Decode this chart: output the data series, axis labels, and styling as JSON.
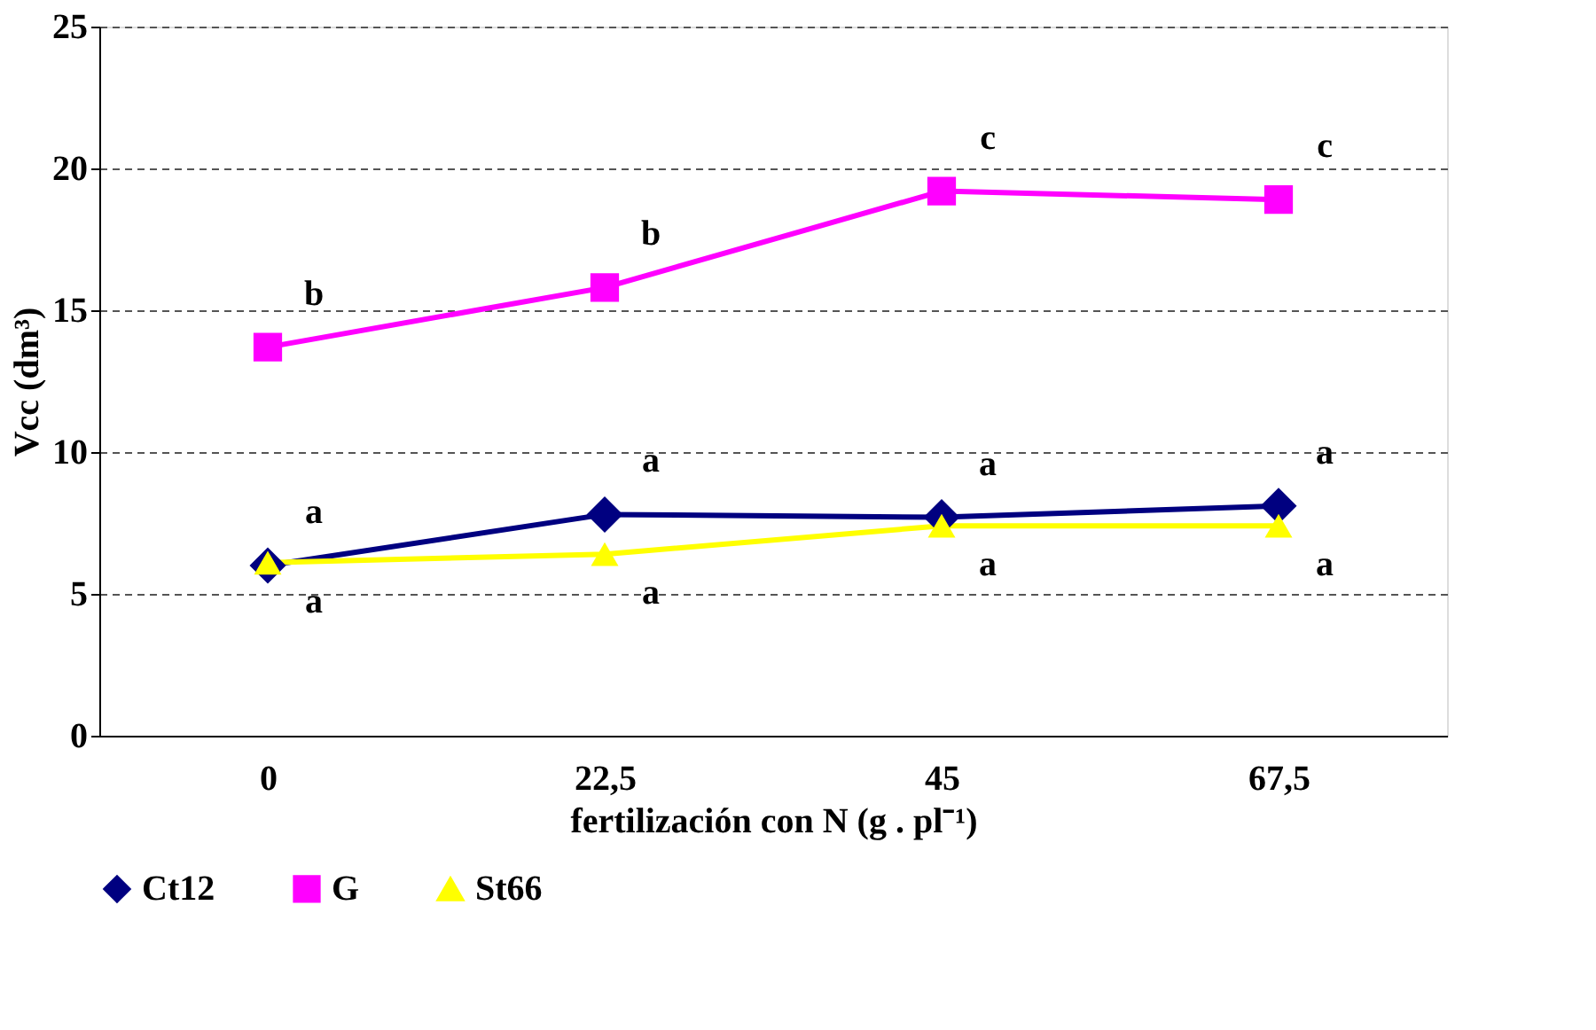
{
  "chart_data": {
    "type": "line",
    "categories": [
      "0",
      "22,5",
      "45",
      "67,5"
    ],
    "series": [
      {
        "name": "Ct12",
        "color": "#000080",
        "marker": "diamond",
        "values": [
          6.0,
          7.8,
          7.7,
          8.1
        ]
      },
      {
        "name": "G",
        "color": "#ff00ff",
        "marker": "square",
        "values": [
          13.7,
          15.8,
          19.2,
          18.9
        ]
      },
      {
        "name": "St66",
        "color": "#ffff00",
        "marker": "triangle",
        "values": [
          6.1,
          6.4,
          7.4,
          7.4
        ]
      }
    ],
    "ylabel": "Vcc (dm³)",
    "xlabel": "fertilización con N (g . pl⁻¹)",
    "ylim": [
      0,
      25
    ],
    "yticks": [
      0,
      5,
      10,
      15,
      20,
      25
    ],
    "grid": "y",
    "legend": "bottom",
    "line_style": "solid",
    "annotations": [
      {
        "text": "b",
        "x": "0",
        "y": 13.7
      },
      {
        "text": "b",
        "x": "22,5",
        "y": 15.8
      },
      {
        "text": "c",
        "x": "45",
        "y": 19.2
      },
      {
        "text": "c",
        "x": "67,5",
        "y": 18.9
      },
      {
        "text": "a",
        "x": "0",
        "y": 6.0
      },
      {
        "text": "a",
        "x": "22,5",
        "y": 7.8
      },
      {
        "text": "a",
        "x": "45",
        "y": 7.7
      },
      {
        "text": "a",
        "x": "67,5",
        "y": 8.1
      },
      {
        "text": "a",
        "x": "0",
        "y": 6.1
      },
      {
        "text": "a",
        "x": "22,5",
        "y": 6.4
      },
      {
        "text": "a",
        "x": "45",
        "y": 7.4
      },
      {
        "text": "a",
        "x": "67,5",
        "y": 7.4
      }
    ]
  }
}
